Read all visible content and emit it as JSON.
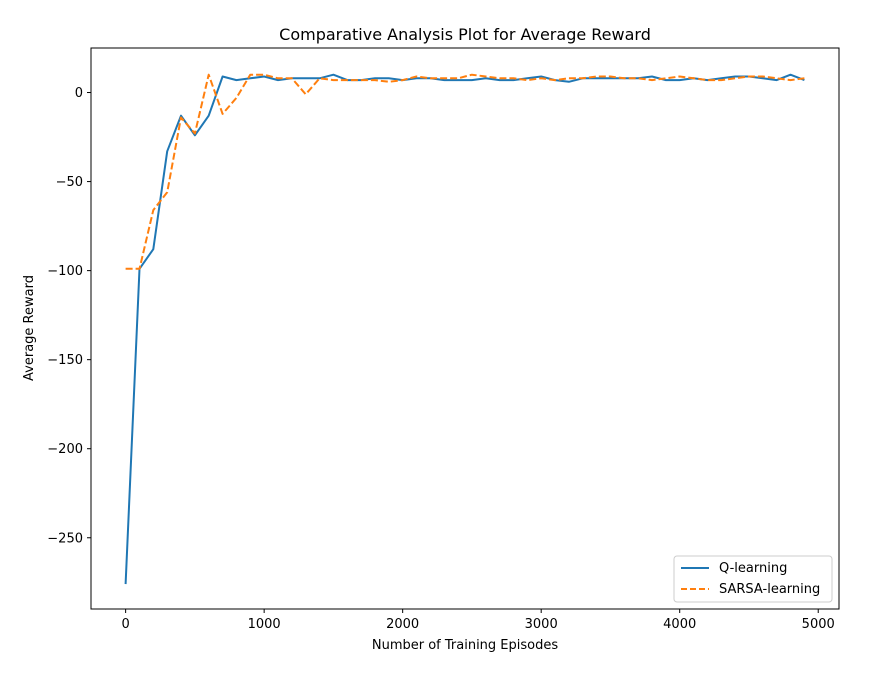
{
  "chart_data": {
    "type": "line",
    "title": "Comparative Analysis Plot for Average Reward",
    "xlabel": "Number of Training Episodes",
    "ylabel": "Average Reward",
    "xlim": [
      -250,
      5150
    ],
    "ylim": [
      -290,
      25
    ],
    "x_ticks": [
      0,
      1000,
      2000,
      3000,
      4000,
      5000
    ],
    "x_tick_labels": [
      "0",
      "1000",
      "2000",
      "3000",
      "4000",
      "5000"
    ],
    "y_ticks": [
      0,
      -50,
      -100,
      -150,
      -200,
      -250
    ],
    "y_tick_labels": [
      "0",
      "−50",
      "−100",
      "−150",
      "−200",
      "−250"
    ],
    "grid": false,
    "legend_placement": "lower-right",
    "x": [
      0,
      100,
      200,
      300,
      400,
      500,
      600,
      700,
      800,
      900,
      1000,
      1100,
      1200,
      1300,
      1400,
      1500,
      1600,
      1700,
      1800,
      1900,
      2000,
      2100,
      2200,
      2300,
      2400,
      2500,
      2600,
      2700,
      2800,
      2900,
      3000,
      3100,
      3200,
      3300,
      3400,
      3500,
      3600,
      3700,
      3800,
      3900,
      4000,
      4100,
      4200,
      4300,
      4400,
      4500,
      4600,
      4700,
      4800,
      4900
    ],
    "series": [
      {
        "name": "Q-learning",
        "color": "#1f77b4",
        "dash": "solid",
        "values": [
          -276,
          -99,
          -88,
          -33,
          -13,
          -24,
          -13,
          9,
          7,
          8,
          9,
          7,
          8,
          8,
          8,
          10,
          7,
          7,
          8,
          8,
          7,
          8,
          8,
          7,
          7,
          7,
          8,
          7,
          7,
          8,
          9,
          7,
          6,
          8,
          8,
          8,
          8,
          8,
          9,
          7,
          7,
          8,
          7,
          8,
          9,
          9,
          8,
          7,
          10,
          7
        ]
      },
      {
        "name": "SARSA-learning",
        "color": "#ff7f0e",
        "dash": "dashed",
        "values": [
          -99,
          -99,
          -66,
          -56,
          -14,
          -23,
          10,
          -12,
          -3,
          10,
          10,
          8,
          8,
          -1,
          8,
          7,
          7,
          7,
          7,
          6,
          7,
          9,
          8,
          8,
          8,
          10,
          9,
          8,
          8,
          7,
          8,
          7,
          8,
          8,
          9,
          9,
          8,
          8,
          7,
          8,
          9,
          8,
          7,
          7,
          8,
          9,
          9,
          8,
          7,
          8
        ]
      }
    ]
  }
}
